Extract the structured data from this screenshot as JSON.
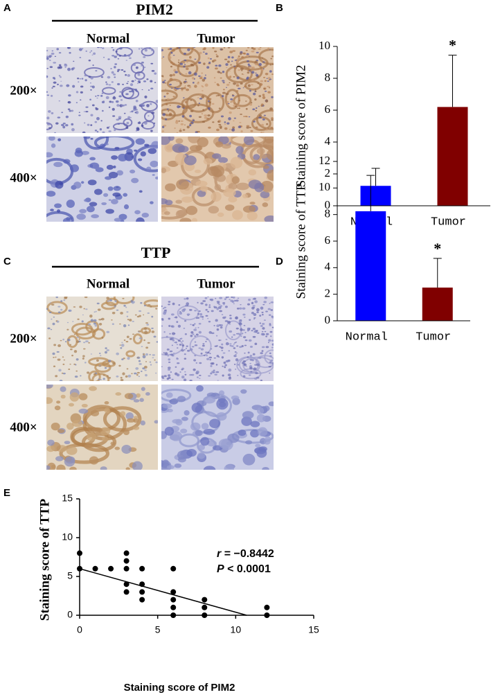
{
  "panel_a": {
    "letter": "A",
    "title": "PIM2",
    "columns": [
      "Normal",
      "Tumor"
    ],
    "rows": [
      "200×",
      "400×"
    ]
  },
  "panel_c": {
    "letter": "C",
    "title": "TTP",
    "columns": [
      "Normal",
      "Tumor"
    ],
    "rows": [
      "200×",
      "400×"
    ]
  },
  "chart_data": [
    {
      "type": "bar",
      "letter": "B",
      "ylabel": "Staining score of PIM2",
      "categories": [
        "Normal",
        "Tumor"
      ],
      "values": [
        1.25,
        6.2
      ],
      "errors": [
        1.1,
        3.25
      ],
      "colors": [
        "#0000ff",
        "#800000"
      ],
      "ylim": [
        0,
        10
      ],
      "yticks": [
        0,
        2,
        4,
        6,
        8,
        10
      ],
      "annotations": [
        {
          "text": "*",
          "category": "Tumor"
        }
      ]
    },
    {
      "type": "bar",
      "letter": "D",
      "ylabel": "Staining score of TTP",
      "categories": [
        "Normal",
        "Tumor"
      ],
      "values": [
        8.25,
        2.5
      ],
      "errors": [
        2.7,
        2.2
      ],
      "colors": [
        "#0000ff",
        "#800000"
      ],
      "ylim": [
        0,
        12
      ],
      "yticks": [
        0,
        2,
        4,
        6,
        8,
        10,
        12
      ],
      "annotations": [
        {
          "text": "*",
          "category": "Tumor"
        }
      ]
    },
    {
      "type": "scatter",
      "letter": "E",
      "xlabel": "Staining score of PIM2",
      "ylabel": "Staining score of TTP",
      "x": [
        0,
        0,
        1,
        2,
        3,
        3,
        3,
        3,
        3,
        4,
        4,
        4,
        4,
        6,
        6,
        6,
        6,
        6,
        8,
        8,
        8,
        12,
        12
      ],
      "y": [
        8,
        6,
        6,
        6,
        8,
        7,
        6,
        4,
        3,
        6,
        4,
        3,
        2,
        6,
        3,
        2,
        1,
        0,
        2,
        1,
        0,
        1,
        0
      ],
      "color": "#000000",
      "fit_line": {
        "x": [
          0,
          10.7
        ],
        "y": [
          6,
          0
        ]
      },
      "xlim": [
        0,
        15
      ],
      "xticks": [
        0,
        5,
        10,
        15
      ],
      "ylim": [
        0,
        15
      ],
      "yticks": [
        0,
        5,
        10,
        15
      ],
      "annotations": [
        {
          "italic": "r",
          "text": "= −0.8442"
        },
        {
          "italic": "P",
          "text": "< 0.0001"
        }
      ]
    }
  ]
}
